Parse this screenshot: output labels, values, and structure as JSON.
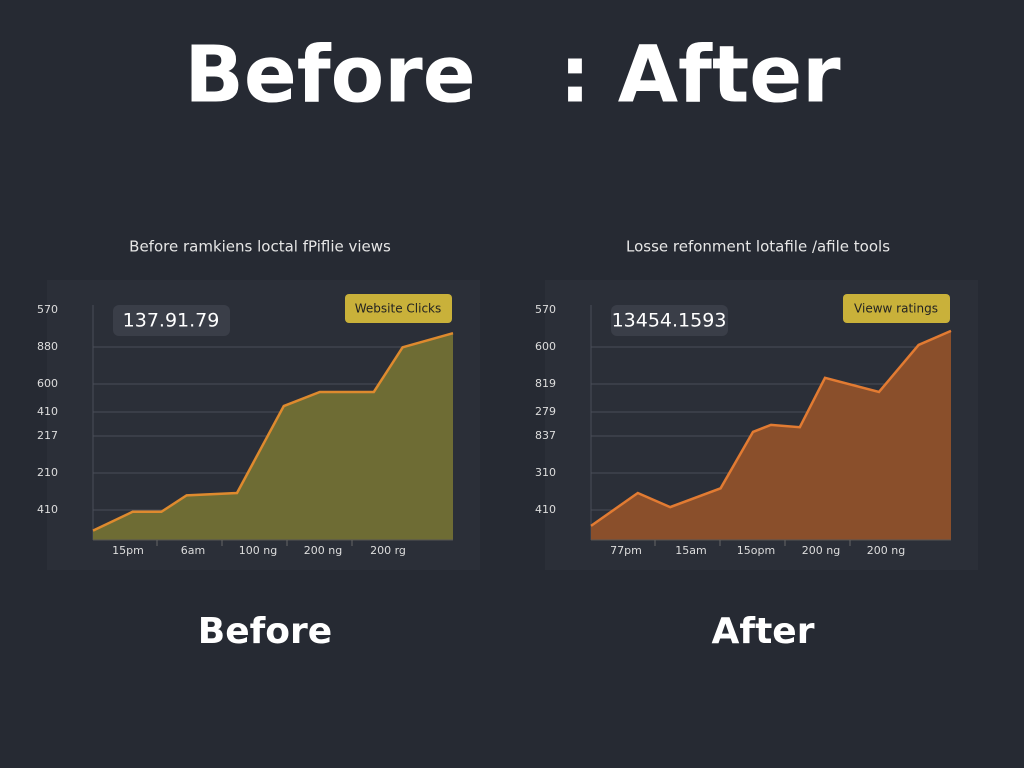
{
  "header": {
    "title_left": "Before",
    "title_right": ": After"
  },
  "chart_data": [
    {
      "type": "area",
      "subtitle": "Before ramkiens loctal fPiflie views",
      "value_box": "137.91.79",
      "badge": "Website Clicks",
      "caption": "Before",
      "fill": "#6e6c34",
      "color": "#de8a2e",
      "y_labels": [
        "570",
        "880",
        "600",
        "410",
        "217",
        "210",
        "410"
      ],
      "x_labels": [
        "15pm",
        "6am",
        "100 ng",
        "200 ng",
        "200 rg"
      ],
      "x": [
        0,
        11,
        19,
        26,
        40,
        53,
        63,
        78,
        86,
        100
      ],
      "values": [
        4,
        12,
        12,
        19,
        20,
        57,
        63,
        63,
        82,
        88
      ],
      "xlim": [
        0,
        100
      ],
      "ylim": [
        0,
        100
      ]
    },
    {
      "type": "area",
      "subtitle": "Losse refonment lotafile /afile tools",
      "value_box": "13454.1593",
      "badge": "Vieww ratings",
      "caption": "After",
      "fill": "#8a4f2b",
      "color": "#e27b32",
      "y_labels": [
        "570",
        "600",
        "819",
        "279",
        "837",
        "310",
        "410"
      ],
      "x_labels": [
        "77pm",
        "15am",
        "15opm",
        "200 ng",
        "200 ng"
      ],
      "x": [
        0,
        13,
        22,
        36,
        45,
        50,
        58,
        65,
        80,
        91,
        100
      ],
      "values": [
        6,
        20,
        14,
        22,
        46,
        49,
        48,
        69,
        63,
        83,
        89
      ],
      "xlim": [
        0,
        100
      ],
      "ylim": [
        0,
        100
      ]
    }
  ]
}
